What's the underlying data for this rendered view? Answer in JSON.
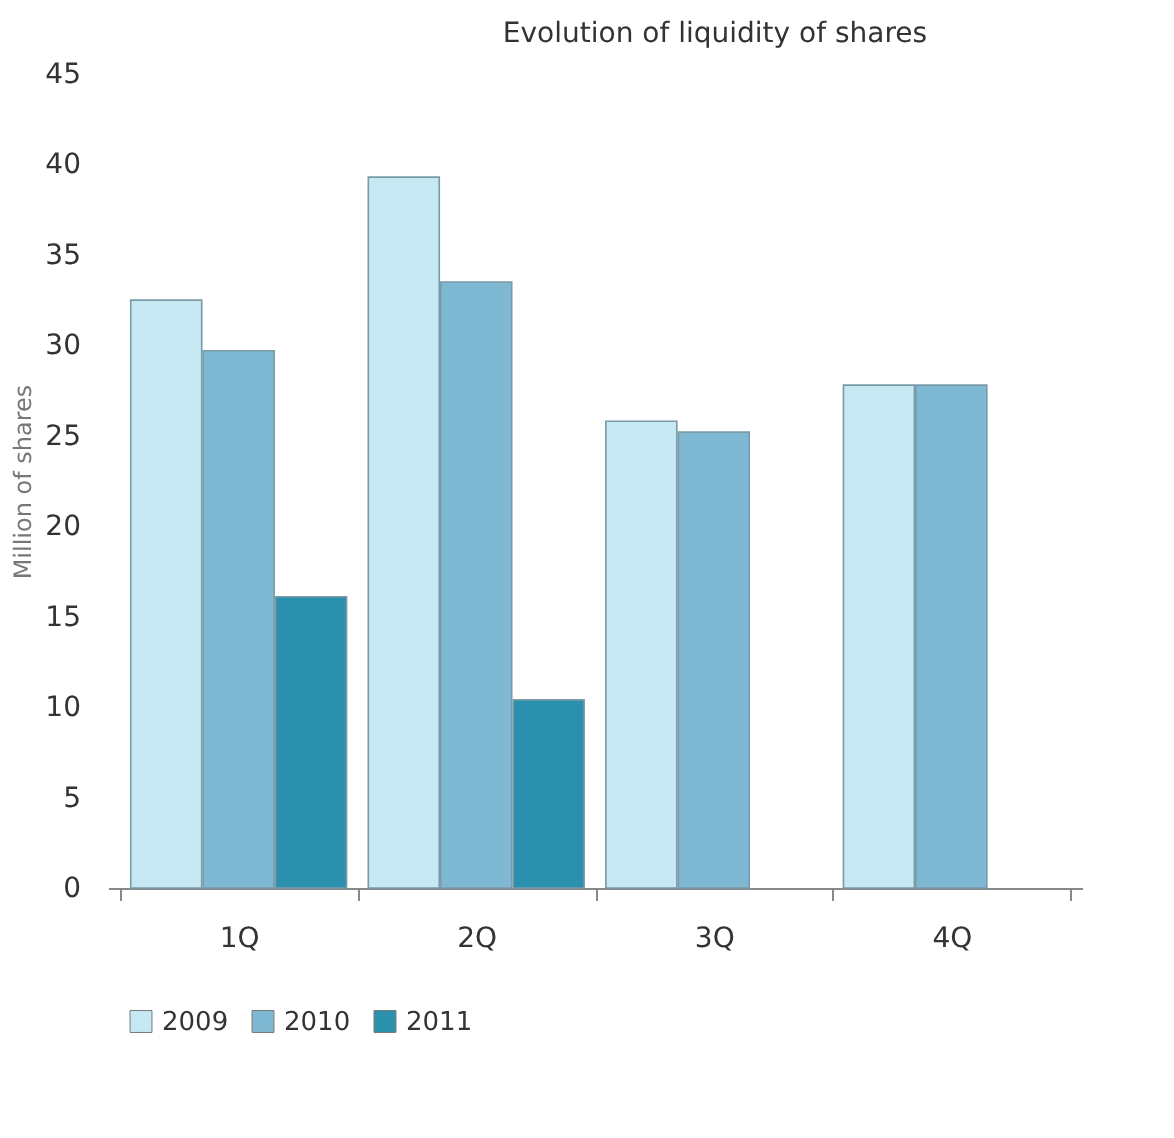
{
  "chart_data": {
    "type": "bar",
    "title": "Evolution  of liquidity  of shares",
    "ylabel": "Million of shares",
    "categories": [
      "1Q",
      "2Q",
      "3Q",
      "4Q"
    ],
    "series": [
      {
        "name": "2009",
        "color": "#c5e8f3",
        "values": [
          32.5,
          39.3,
          25.8,
          27.8
        ]
      },
      {
        "name": "2010",
        "color": "#7fb8d2",
        "values": [
          29.7,
          33.5,
          25.2,
          27.8
        ]
      },
      {
        "name": "2011",
        "color": "#2b8fae",
        "values": [
          16.1,
          10.4,
          null,
          null
        ]
      }
    ],
    "ylim": [
      0,
      45
    ],
    "yticks": [
      0,
      5,
      10,
      15,
      20,
      25,
      30,
      35,
      40,
      45
    ],
    "grid": false,
    "legend": "bottom"
  }
}
